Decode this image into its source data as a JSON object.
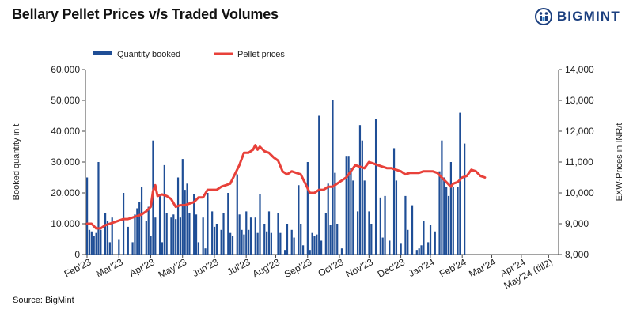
{
  "header": {
    "title": "Bellary Pellet Prices v/s Traded Volumes",
    "logo_text": "BIGMINT"
  },
  "footer": {
    "source": "Source: BigMint"
  },
  "colors": {
    "bars": "#1f4e96",
    "line": "#e8413a",
    "logo": "#1b3f7f"
  },
  "chart_data": {
    "type": "bar+line",
    "title": "Bellary Pellet Prices v/s Traded Volumes",
    "legend": {
      "position": "top-left",
      "entries": [
        "Quantity booked",
        "Pellet prices"
      ]
    },
    "ylabel_left": "Booked quantity in t",
    "ylabel_right": "EXW-Prices in INR/t",
    "ylim_left": [
      0,
      60000
    ],
    "ylim_right": [
      8000,
      14000
    ],
    "yticks_left": [
      "0",
      "10,000",
      "20,000",
      "30,000",
      "40,000",
      "50,000",
      "60,000"
    ],
    "yticks_right": [
      "8,000",
      "9,000",
      "10,000",
      "11,000",
      "12,000",
      "13,000",
      "14,000"
    ],
    "grid": false,
    "x_period_count": 162,
    "x_month_labels": [
      {
        "label": "Feb'23",
        "index": 0
      },
      {
        "label": "Mar'23",
        "index": 14
      },
      {
        "label": "Apr'23",
        "index": 28
      },
      {
        "label": "May'23",
        "index": 42
      },
      {
        "label": "Jun'23",
        "index": 56
      },
      {
        "label": "Jul'23",
        "index": 70
      },
      {
        "label": "Aug'23",
        "index": 83
      },
      {
        "label": "Sep'23",
        "index": 97
      },
      {
        "label": "Oct'23",
        "index": 111
      },
      {
        "label": "Nov'23",
        "index": 124
      },
      {
        "label": "Dec'23",
        "index": 138
      },
      {
        "label": "Jan'24",
        "index": 151
      },
      {
        "label": "Feb'24",
        "index": 165
      },
      {
        "label": "Mar'24",
        "index": 178
      },
      {
        "label": "Apr'24",
        "index": 191
      },
      {
        "label": "May'24 (till2)",
        "index": 203
      }
    ],
    "x_index_max": 206,
    "series": [
      {
        "name": "Quantity booked",
        "kind": "bar",
        "axis": "left",
        "points": [
          [
            0,
            25000
          ],
          [
            1,
            8000
          ],
          [
            2,
            7500
          ],
          [
            3,
            6000
          ],
          [
            4,
            7000
          ],
          [
            5,
            30000
          ],
          [
            6,
            8000
          ],
          [
            8,
            13500
          ],
          [
            9,
            11000
          ],
          [
            10,
            4000
          ],
          [
            11,
            12000
          ],
          [
            14,
            5000
          ],
          [
            16,
            20000
          ],
          [
            18,
            9000
          ],
          [
            20,
            4000
          ],
          [
            21,
            13000
          ],
          [
            22,
            15000
          ],
          [
            23,
            17000
          ],
          [
            24,
            22000
          ],
          [
            26,
            11000
          ],
          [
            27,
            15500
          ],
          [
            28,
            6000
          ],
          [
            29,
            37000
          ],
          [
            30,
            12000
          ],
          [
            32,
            19000
          ],
          [
            33,
            4000
          ],
          [
            34,
            29000
          ],
          [
            35,
            13500
          ],
          [
            37,
            12000
          ],
          [
            38,
            13000
          ],
          [
            39,
            11500
          ],
          [
            40,
            25000
          ],
          [
            41,
            12000
          ],
          [
            42,
            31000
          ],
          [
            43,
            21000
          ],
          [
            44,
            23000
          ],
          [
            45,
            13500
          ],
          [
            47,
            19500
          ],
          [
            48,
            13000
          ],
          [
            49,
            4000
          ],
          [
            51,
            12000
          ],
          [
            52,
            2000
          ],
          [
            53,
            20000
          ],
          [
            55,
            14000
          ],
          [
            56,
            9000
          ],
          [
            57,
            10000
          ],
          [
            59,
            8000
          ],
          [
            60,
            13500
          ],
          [
            62,
            20000
          ],
          [
            63,
            7000
          ],
          [
            64,
            6000
          ],
          [
            66,
            26000
          ],
          [
            67,
            13000
          ],
          [
            68,
            8000
          ],
          [
            69,
            6500
          ],
          [
            70,
            14000
          ],
          [
            71,
            8000
          ],
          [
            72,
            12000
          ],
          [
            74,
            12000
          ],
          [
            75,
            7000
          ],
          [
            76,
            19500
          ],
          [
            78,
            10000
          ],
          [
            79,
            7500
          ],
          [
            80,
            14000
          ],
          [
            81,
            7000
          ],
          [
            84,
            13500
          ],
          [
            85,
            7000
          ],
          [
            87,
            1500
          ],
          [
            88,
            10000
          ],
          [
            90,
            8000
          ],
          [
            91,
            5500
          ],
          [
            93,
            22500
          ],
          [
            94,
            10000
          ],
          [
            95,
            3000
          ],
          [
            97,
            30000
          ],
          [
            98,
            1500
          ],
          [
            99,
            7000
          ],
          [
            100,
            6000
          ],
          [
            101,
            6500
          ],
          [
            102,
            45000
          ],
          [
            103,
            4500
          ],
          [
            105,
            13500
          ],
          [
            106,
            23000
          ],
          [
            107,
            9500
          ],
          [
            108,
            50000
          ],
          [
            109,
            26500
          ],
          [
            110,
            10000
          ],
          [
            112,
            2000
          ],
          [
            114,
            32000
          ],
          [
            115,
            32000
          ],
          [
            116,
            28000
          ],
          [
            117,
            24000
          ],
          [
            119,
            14000
          ],
          [
            120,
            42000
          ],
          [
            121,
            37000
          ],
          [
            122,
            24000
          ],
          [
            124,
            14000
          ],
          [
            125,
            10000
          ],
          [
            127,
            44000
          ],
          [
            129,
            18500
          ],
          [
            130,
            5500
          ],
          [
            131,
            19000
          ],
          [
            133,
            4500
          ],
          [
            135,
            34500
          ],
          [
            136,
            24000
          ],
          [
            138,
            3500
          ],
          [
            140,
            19000
          ],
          [
            141,
            8000
          ],
          [
            143,
            16000
          ],
          [
            145,
            1500
          ],
          [
            146,
            2000
          ],
          [
            147,
            3000
          ],
          [
            148,
            11000
          ],
          [
            150,
            4000
          ],
          [
            151,
            9500
          ],
          [
            153,
            7500
          ],
          [
            155,
            27000
          ],
          [
            156,
            37000
          ],
          [
            157,
            25000
          ],
          [
            158,
            22000
          ],
          [
            159,
            19000
          ],
          [
            160,
            30000
          ],
          [
            161,
            22000
          ],
          [
            163,
            22000
          ],
          [
            164,
            46000
          ],
          [
            166,
            36000
          ]
        ]
      },
      {
        "name": "Pellet prices",
        "kind": "line",
        "axis": "right",
        "points": [
          [
            0,
            9000
          ],
          [
            2,
            9000
          ],
          [
            4,
            8850
          ],
          [
            6,
            8850
          ],
          [
            8,
            8950
          ],
          [
            10,
            9000
          ],
          [
            12,
            9050
          ],
          [
            14,
            9100
          ],
          [
            16,
            9150
          ],
          [
            18,
            9150
          ],
          [
            20,
            9200
          ],
          [
            22,
            9250
          ],
          [
            24,
            9300
          ],
          [
            26,
            9400
          ],
          [
            28,
            9550
          ],
          [
            29,
            10050
          ],
          [
            30,
            10250
          ],
          [
            31,
            9900
          ],
          [
            33,
            9950
          ],
          [
            35,
            9900
          ],
          [
            37,
            9800
          ],
          [
            39,
            9550
          ],
          [
            41,
            9600
          ],
          [
            43,
            9600
          ],
          [
            45,
            9650
          ],
          [
            47,
            9700
          ],
          [
            49,
            9850
          ],
          [
            51,
            9850
          ],
          [
            53,
            10100
          ],
          [
            55,
            10100
          ],
          [
            57,
            10100
          ],
          [
            59,
            10200
          ],
          [
            61,
            10250
          ],
          [
            63,
            10300
          ],
          [
            65,
            10600
          ],
          [
            67,
            10900
          ],
          [
            69,
            11300
          ],
          [
            71,
            11300
          ],
          [
            73,
            11400
          ],
          [
            74,
            11550
          ],
          [
            75,
            11400
          ],
          [
            76,
            11500
          ],
          [
            78,
            11350
          ],
          [
            80,
            11300
          ],
          [
            82,
            11150
          ],
          [
            84,
            11050
          ],
          [
            86,
            10700
          ],
          [
            88,
            10600
          ],
          [
            90,
            10700
          ],
          [
            92,
            10650
          ],
          [
            94,
            10600
          ],
          [
            96,
            10300
          ],
          [
            98,
            10000
          ],
          [
            100,
            10000
          ],
          [
            102,
            10100
          ],
          [
            104,
            10100
          ],
          [
            106,
            10200
          ],
          [
            108,
            10200
          ],
          [
            110,
            10300
          ],
          [
            112,
            10400
          ],
          [
            114,
            10500
          ],
          [
            116,
            10700
          ],
          [
            118,
            10900
          ],
          [
            120,
            10850
          ],
          [
            122,
            10800
          ],
          [
            124,
            11000
          ],
          [
            126,
            10950
          ],
          [
            128,
            10900
          ],
          [
            130,
            10850
          ],
          [
            132,
            10800
          ],
          [
            134,
            10800
          ],
          [
            136,
            10750
          ],
          [
            138,
            10700
          ],
          [
            140,
            10600
          ],
          [
            142,
            10650
          ],
          [
            144,
            10650
          ],
          [
            146,
            10650
          ],
          [
            148,
            10700
          ],
          [
            150,
            10700
          ],
          [
            152,
            10700
          ],
          [
            154,
            10650
          ],
          [
            156,
            10500
          ],
          [
            158,
            10350
          ],
          [
            160,
            10200
          ],
          [
            161,
            10300
          ],
          [
            163,
            10350
          ],
          [
            165,
            10500
          ],
          [
            167,
            10550
          ],
          [
            169,
            10750
          ],
          [
            171,
            10700
          ],
          [
            173,
            10550
          ],
          [
            175,
            10500
          ]
        ]
      }
    ]
  }
}
